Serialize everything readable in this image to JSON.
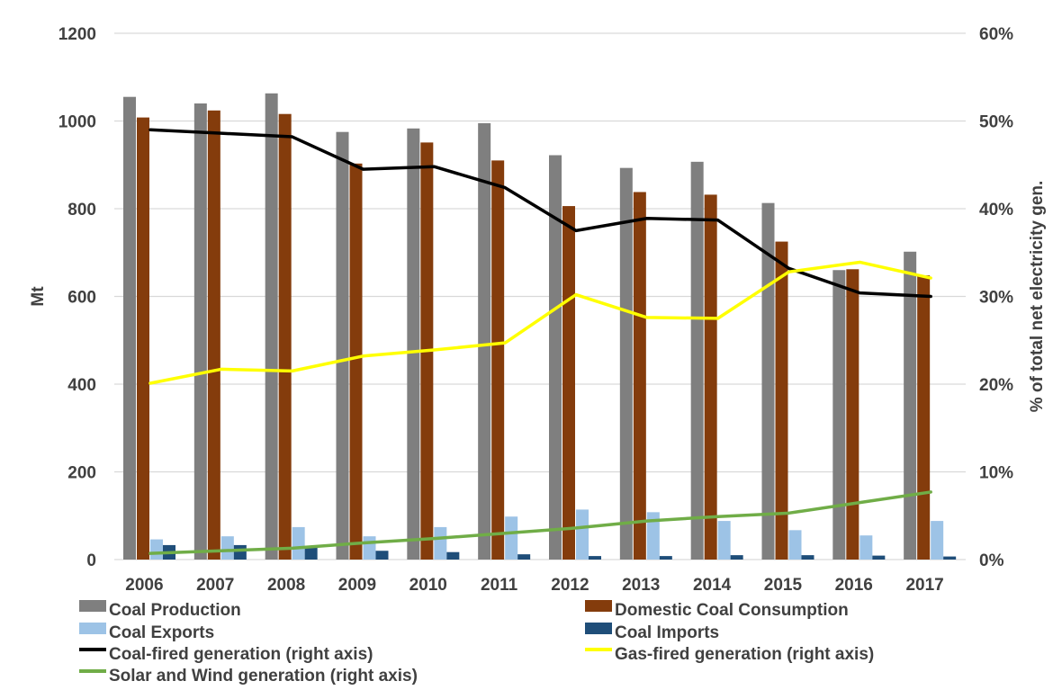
{
  "colors": {
    "coal_production": "#7f7f7f",
    "domestic_consumption": "#843c0c",
    "coal_exports": "#9dc3e6",
    "coal_imports": "#1f4e79",
    "coal_fired": "#000000",
    "gas_fired": "#ffff00",
    "solar_wind": "#70ad47",
    "grid": "#d9d9d9",
    "text": "#404040"
  },
  "chart_data": {
    "type": "bar",
    "title": "",
    "xlabel": "",
    "ylabel": "Mt",
    "y2label": "% of total net electricity gen.",
    "ylim": [
      0,
      1200
    ],
    "y2lim": [
      0,
      0.6
    ],
    "yticks": [
      "0",
      "200",
      "400",
      "600",
      "800",
      "1000",
      "1200"
    ],
    "y2ticks": [
      "0%",
      "10%",
      "20%",
      "30%",
      "40%",
      "50%",
      "60%"
    ],
    "grid": true,
    "legend_position": "bottom",
    "categories": [
      "2006",
      "2007",
      "2008",
      "2009",
      "2010",
      "2011",
      "2012",
      "2013",
      "2014",
      "2015",
      "2016",
      "2017"
    ],
    "series": [
      {
        "name": "Coal Production",
        "kind": "bar",
        "axis": "left",
        "color_key": "coal_production",
        "values": [
          1055,
          1040,
          1063,
          975,
          983,
          995,
          922,
          893,
          907,
          813,
          660,
          702
        ]
      },
      {
        "name": "Domestic Coal Consumption",
        "kind": "bar",
        "axis": "left",
        "color_key": "domestic_consumption",
        "values": [
          1008,
          1024,
          1016,
          903,
          951,
          910,
          806,
          838,
          832,
          725,
          662,
          648
        ]
      },
      {
        "name": "Coal Exports",
        "kind": "bar",
        "axis": "left",
        "color_key": "coal_exports",
        "values": [
          46,
          53,
          74,
          53,
          74,
          98,
          114,
          108,
          88,
          67,
          55,
          88
        ]
      },
      {
        "name": "Coal Imports",
        "kind": "bar",
        "axis": "left",
        "color_key": "coal_imports",
        "values": [
          33,
          33,
          31,
          20,
          17,
          12,
          8,
          8,
          10,
          10,
          9,
          7
        ]
      },
      {
        "name": "Coal-fired generation (right axis)",
        "kind": "line",
        "axis": "right",
        "color_key": "coal_fired",
        "values": [
          0.49,
          0.486,
          0.482,
          0.445,
          0.448,
          0.424,
          0.375,
          0.389,
          0.387,
          0.332,
          0.304,
          0.3
        ]
      },
      {
        "name": "Gas-fired generation  (right axis)",
        "kind": "line",
        "axis": "right",
        "color_key": "gas_fired",
        "values": [
          0.201,
          0.217,
          0.215,
          0.232,
          0.239,
          0.247,
          0.302,
          0.276,
          0.275,
          0.328,
          0.339,
          0.321
        ]
      },
      {
        "name": "Solar and Wind generation (right axis)",
        "kind": "line",
        "axis": "right",
        "color_key": "solar_wind",
        "values": [
          0.007,
          0.01,
          0.013,
          0.019,
          0.024,
          0.03,
          0.036,
          0.044,
          0.049,
          0.053,
          0.065,
          0.077
        ]
      }
    ]
  }
}
